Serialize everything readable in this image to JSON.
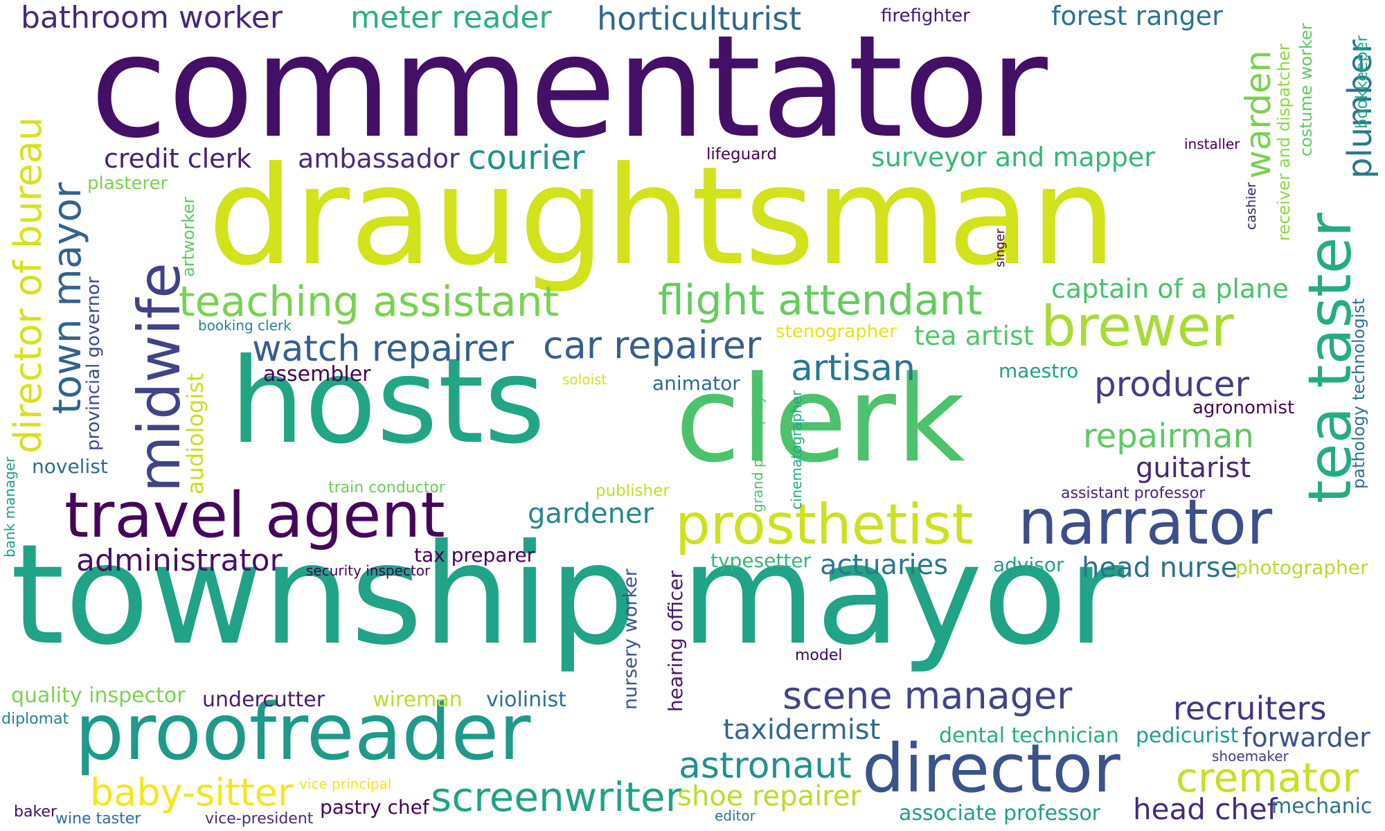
{
  "words": [
    {
      "key": "commentator",
      "text": "commentator",
      "color": "#440f66"
    },
    {
      "key": "draughtsman",
      "text": "draughtsman",
      "color": "#d2e21b"
    },
    {
      "key": "township_mayor",
      "text": "township mayor",
      "color": "#20a386"
    },
    {
      "key": "hosts",
      "text": "hosts",
      "color": "#21a585"
    },
    {
      "key": "clerk",
      "text": "clerk",
      "color": "#4cc26c"
    },
    {
      "key": "proofreader",
      "text": "proofreader",
      "color": "#1f998a"
    },
    {
      "key": "travel_agent",
      "text": "travel agent",
      "color": "#45065a"
    },
    {
      "key": "narrator",
      "text": "narrator",
      "color": "#3d4e8a"
    },
    {
      "key": "prosthetist",
      "text": "prosthetist",
      "color": "#cde11d"
    },
    {
      "key": "director",
      "text": "director",
      "color": "#3b528b"
    },
    {
      "key": "brewer",
      "text": "brewer",
      "color": "#a8db34"
    },
    {
      "key": "midwife",
      "text": "midwife",
      "color": "#404387"
    },
    {
      "key": "tea_taster",
      "text": "tea taster",
      "color": "#25ac82"
    },
    {
      "key": "director_of_bureau",
      "text": "director of bureau",
      "color": "#d8e219"
    },
    {
      "key": "town_mayor",
      "text": "town mayor",
      "color": "#33638d"
    },
    {
      "key": "warden",
      "text": "warden",
      "color": "#7ad151"
    },
    {
      "key": "plumber",
      "text": "plumber",
      "color": "#2a788e"
    },
    {
      "key": "bathroom_worker",
      "text": "bathroom worker",
      "color": "#482979"
    },
    {
      "key": "meter_reader",
      "text": "meter reader",
      "color": "#29af7f"
    },
    {
      "key": "horticulturist",
      "text": "horticulturist",
      "color": "#31668e"
    },
    {
      "key": "firefighter",
      "text": "firefighter",
      "color": "#48186a"
    },
    {
      "key": "forest_ranger",
      "text": "forest ranger",
      "color": "#2c728e"
    },
    {
      "key": "receiver_and_dispatcher",
      "text": "receiver and dispatcher",
      "color": "#8fd744"
    },
    {
      "key": "costume_worker",
      "text": "costume worker",
      "color": "#5ec962"
    },
    {
      "key": "bookkeeper",
      "text": "bookkeeper",
      "color": "#22a884"
    },
    {
      "key": "credit_clerk",
      "text": "credit clerk",
      "color": "#481f70"
    },
    {
      "key": "ambassador",
      "text": "ambassador",
      "color": "#472d7b"
    },
    {
      "key": "courier",
      "text": "courier",
      "color": "#21918c"
    },
    {
      "key": "lifeguard",
      "text": "lifeguard",
      "color": "#440154"
    },
    {
      "key": "surveyor_and_mapper",
      "text": "surveyor and mapper",
      "color": "#35b779"
    },
    {
      "key": "installer",
      "text": "installer",
      "color": "#440154"
    },
    {
      "key": "plasterer",
      "text": "plasterer",
      "color": "#7ad151"
    },
    {
      "key": "artworker",
      "text": "artworker",
      "color": "#5ec962"
    },
    {
      "key": "cashier",
      "text": "cashier",
      "color": "#2d1e6a"
    },
    {
      "key": "singer",
      "text": "singer",
      "color": "#440154"
    },
    {
      "key": "teaching_assistant",
      "text": "teaching assistant",
      "color": "#7ad151"
    },
    {
      "key": "flight_attendant",
      "text": "flight attendant",
      "color": "#65cb5e"
    },
    {
      "key": "captain_of_a_plane",
      "text": "captain of a plane",
      "color": "#4ac16d"
    },
    {
      "key": "pathology_technologist",
      "text": "pathology technologist",
      "color": "#2c728e"
    },
    {
      "key": "provincial_governor",
      "text": "provincial governor",
      "color": "#3e4989"
    },
    {
      "key": "booking_clerk",
      "text": "booking clerk",
      "color": "#26828e"
    },
    {
      "key": "stenographer",
      "text": "stenographer",
      "color": "#e5e419"
    },
    {
      "key": "tea_artist",
      "text": "tea artist",
      "color": "#52c569"
    },
    {
      "key": "watch_repairer",
      "text": "watch repairer",
      "color": "#355f8d"
    },
    {
      "key": "car_repairer",
      "text": "car repairer",
      "color": "#355e8d"
    },
    {
      "key": "artisan",
      "text": "artisan",
      "color": "#2a778e"
    },
    {
      "key": "maestro",
      "text": "maestro",
      "color": "#1fa187"
    },
    {
      "key": "producer",
      "text": "producer",
      "color": "#433e85"
    },
    {
      "key": "assembler",
      "text": "assembler",
      "color": "#440154"
    },
    {
      "key": "soloist",
      "text": "soloist",
      "color": "#d2e21b"
    },
    {
      "key": "animator",
      "text": "animator",
      "color": "#31688e"
    },
    {
      "key": "agronomist",
      "text": "agronomist",
      "color": "#46075a"
    },
    {
      "key": "audiologist",
      "text": "audiologist",
      "color": "#c8e020"
    },
    {
      "key": "grand_piano_player",
      "text": "grand piano player",
      "color": "#4ac16d"
    },
    {
      "key": "cinematographer",
      "text": "cinematographer",
      "color": "#22a884"
    },
    {
      "key": "repairman",
      "text": "repairman",
      "color": "#5ec962"
    },
    {
      "key": "guitarist",
      "text": "guitarist",
      "color": "#482677"
    },
    {
      "key": "novelist",
      "text": "novelist",
      "color": "#2f6c8e"
    },
    {
      "key": "bank_manager",
      "text": "bank manager",
      "color": "#1f9a8a"
    },
    {
      "key": "train_conductor",
      "text": "train conductor",
      "color": "#6ccd5a"
    },
    {
      "key": "publisher",
      "text": "publisher",
      "color": "#c2df23"
    },
    {
      "key": "assistant_professor",
      "text": "assistant professor",
      "color": "#482475"
    },
    {
      "key": "gardener",
      "text": "gardener",
      "color": "#24878e"
    },
    {
      "key": "administrator",
      "text": "administrator",
      "color": "#471063"
    },
    {
      "key": "tax_preparer",
      "text": "tax preparer",
      "color": "#440154"
    },
    {
      "key": "security_inspector",
      "text": "security inspector",
      "color": "#440154"
    },
    {
      "key": "typesetter",
      "text": "typesetter",
      "color": "#35b779"
    },
    {
      "key": "actuaries",
      "text": "actuaries",
      "color": "#2a788e"
    },
    {
      "key": "advisor",
      "text": "advisor",
      "color": "#1f9e89"
    },
    {
      "key": "head_nurse",
      "text": "head nurse",
      "color": "#2c728e"
    },
    {
      "key": "photographer",
      "text": "photographer",
      "color": "#b5de2b"
    },
    {
      "key": "nursery_worker",
      "text": "nursery worker",
      "color": "#3b528b"
    },
    {
      "key": "hearing_officer",
      "text": "hearing officer",
      "color": "#48186a"
    },
    {
      "key": "model",
      "text": "model",
      "color": "#3e0751"
    },
    {
      "key": "quality_inspector",
      "text": "quality inspector",
      "color": "#7ad151"
    },
    {
      "key": "undercutter",
      "text": "undercutter",
      "color": "#481c6e"
    },
    {
      "key": "wireman",
      "text": "wireman",
      "color": "#b8de29"
    },
    {
      "key": "violinist",
      "text": "violinist",
      "color": "#2c728e"
    },
    {
      "key": "scene_manager",
      "text": "scene manager",
      "color": "#414487"
    },
    {
      "key": "recruiters",
      "text": "recruiters",
      "color": "#453581"
    },
    {
      "key": "diplomat",
      "text": "diplomat",
      "color": "#26828e"
    },
    {
      "key": "taxidermist",
      "text": "taxidermist",
      "color": "#31688e"
    },
    {
      "key": "dental_technician",
      "text": "dental technician",
      "color": "#25ac82"
    },
    {
      "key": "pedicurist",
      "text": "pedicurist",
      "color": "#1f9e89"
    },
    {
      "key": "forwarder",
      "text": "forwarder",
      "color": "#3b528b"
    },
    {
      "key": "shoemaker",
      "text": "shoemaker",
      "color": "#443a83"
    },
    {
      "key": "astronaut",
      "text": "astronaut",
      "color": "#21908d"
    },
    {
      "key": "cremator",
      "text": "cremator",
      "color": "#c7e020"
    },
    {
      "key": "baby_sitter",
      "text": "baby-sitter",
      "color": "#f4e61e"
    },
    {
      "key": "vice_principal",
      "text": "vice principal",
      "color": "#f1e51d"
    },
    {
      "key": "screenwriter",
      "text": "screenwriter",
      "color": "#1fa287"
    },
    {
      "key": "shoe_repairer",
      "text": "shoe repairer",
      "color": "#b8de29"
    },
    {
      "key": "pastry_chef",
      "text": "pastry chef",
      "color": "#440154"
    },
    {
      "key": "baker",
      "text": "baker",
      "color": "#3b0f70"
    },
    {
      "key": "wine_taster",
      "text": "wine taster",
      "color": "#2f6c8e"
    },
    {
      "key": "vice_president",
      "text": "vice-president",
      "color": "#472c7a"
    },
    {
      "key": "editor",
      "text": "editor",
      "color": "#2a788e"
    },
    {
      "key": "associate_professor",
      "text": "associate professor",
      "color": "#1fa088"
    },
    {
      "key": "head_chef",
      "text": "head chef",
      "color": "#472a7a"
    },
    {
      "key": "mechanic",
      "text": "mechanic",
      "color": "#2c728e"
    }
  ]
}
